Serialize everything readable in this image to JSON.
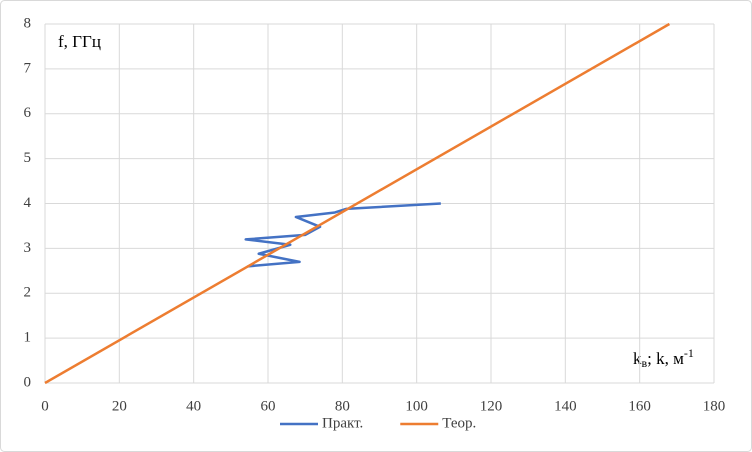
{
  "chart_data": {
    "type": "scatter-line",
    "y_label": "f, ГГц",
    "x_label": {
      "main": "k",
      "sub": "в",
      "rest": "; k, м",
      "sup": "-1"
    },
    "series": [
      {
        "name": "Практ.",
        "color": "#4472c4",
        "x": [
          54.5,
          68.5,
          57.5,
          66,
          54,
          70,
          74,
          67.5,
          78,
          81,
          106.5
        ],
        "values": [
          2.6,
          2.7,
          2.88,
          3.08,
          3.2,
          3.3,
          3.48,
          3.7,
          3.8,
          3.88,
          4.0
        ]
      },
      {
        "name": "Теор.",
        "color": "#ed7d31",
        "x": [
          0,
          168
        ],
        "values": [
          0,
          8
        ]
      }
    ],
    "xlim": [
      0,
      180
    ],
    "xticks": [
      0,
      20,
      40,
      60,
      80,
      100,
      120,
      140,
      160,
      180
    ],
    "ylim": [
      0,
      8
    ],
    "yticks": [
      0,
      1,
      2,
      3,
      4,
      5,
      6,
      7,
      8
    ],
    "grid": true,
    "legend": "bottom"
  }
}
